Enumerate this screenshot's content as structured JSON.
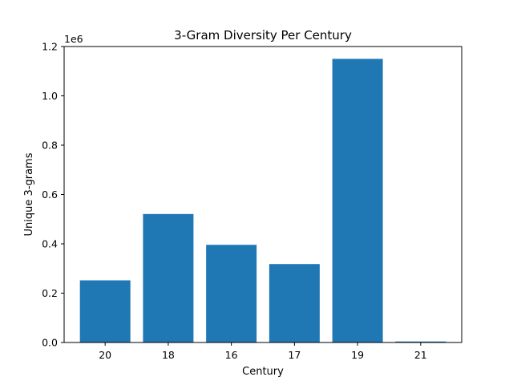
{
  "chart_data": {
    "type": "bar",
    "title": "3-Gram Diversity Per Century",
    "xlabel": "Century",
    "ylabel": "Unique 3-grams",
    "y_offset_label": "1e6",
    "categories": [
      "20",
      "18",
      "16",
      "17",
      "19",
      "21"
    ],
    "values": [
      252000,
      521000,
      396000,
      318000,
      1150000,
      4000
    ],
    "ylim": [
      0,
      1200000
    ],
    "yticks": [
      0,
      200000,
      400000,
      600000,
      800000,
      1000000,
      1200000
    ],
    "ytick_labels": [
      "0.0",
      "0.2",
      "0.4",
      "0.6",
      "0.8",
      "1.0",
      "1.2"
    ],
    "bar_color": "#1f77b4",
    "grid": false,
    "legend": "none"
  }
}
